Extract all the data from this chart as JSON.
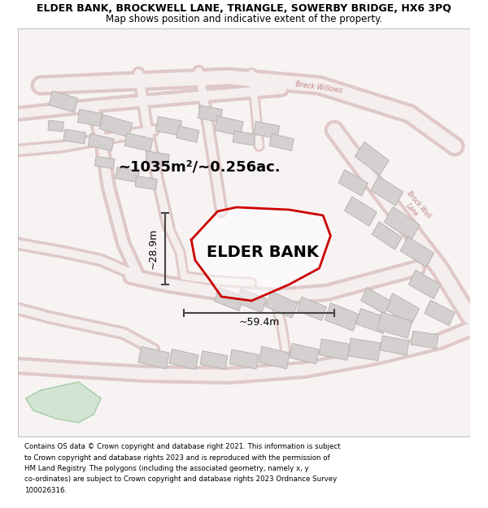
{
  "title_line1": "ELDER BANK, BROCKWELL LANE, TRIANGLE, SOWERBY BRIDGE, HX6 3PQ",
  "title_line2": "Map shows position and indicative extent of the property.",
  "property_label": "ELDER BANK",
  "area_text": "~1035m²/~0.256ac.",
  "width_text": "~59.4m",
  "height_text": "~28.9m",
  "footer_lines": [
    "Contains OS data © Crown copyright and database right 2021. This information is subject",
    "to Crown copyright and database rights 2023 and is reproduced with the permission of",
    "HM Land Registry. The polygons (including the associated geometry, namely x, y",
    "co-ordinates) are subject to Crown copyright and database rights 2023 Ordnance Survey",
    "100026316."
  ],
  "property_outline": "#cc0000",
  "dim_color": "#444444",
  "road_outer": "#e0c8c8",
  "road_inner": "#f5eeee",
  "building_fc": "#d4d0d0",
  "building_ec": "#b8b4b4",
  "green_fc": "#c5dfc5",
  "green_ec": "#a0c8a0",
  "road_label_color": "#c08080",
  "map_bg": "#f7f3f3"
}
